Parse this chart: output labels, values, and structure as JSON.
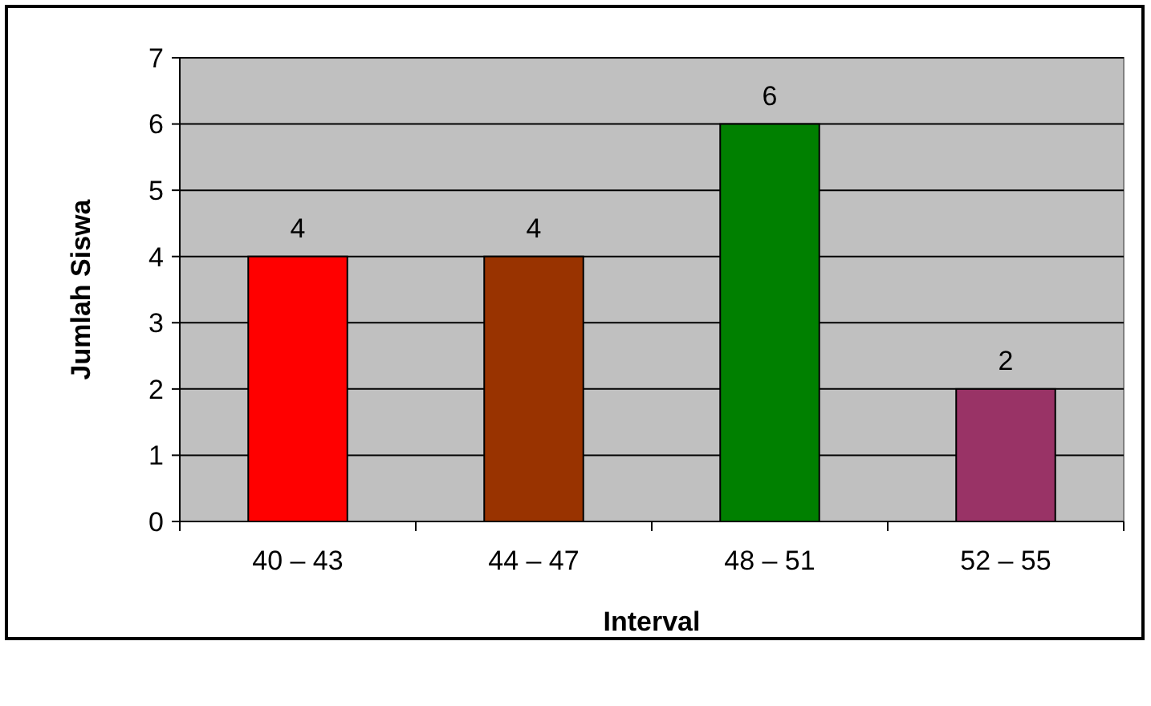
{
  "chart_data": {
    "type": "bar",
    "xlabel": "Interval",
    "ylabel": "Jumlah Siswa",
    "categories": [
      "40 – 43",
      "44 – 47",
      "48 – 51",
      "52 – 55"
    ],
    "values": [
      4,
      4,
      6,
      2
    ],
    "colors": [
      "#ff0000",
      "#993300",
      "#008000",
      "#993366"
    ],
    "ylim": [
      0,
      7
    ],
    "yticks": [
      0,
      1,
      2,
      3,
      4,
      5,
      6,
      7
    ],
    "grid": "y",
    "data_labels": true
  }
}
